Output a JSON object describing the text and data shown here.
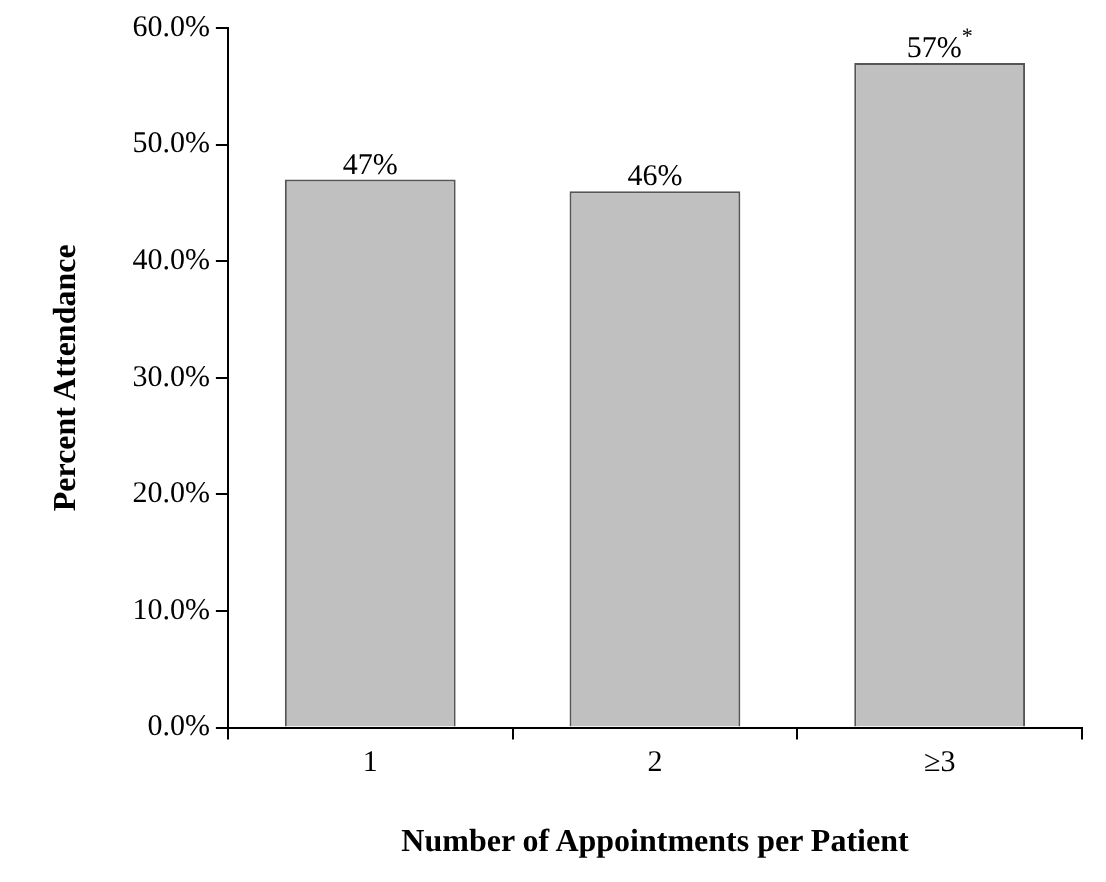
{
  "chart_data": {
    "type": "bar",
    "xlabel": "Number of Appointments per Patient",
    "ylabel": "Percent Attendance",
    "categories": [
      "1",
      "2",
      "≥3"
    ],
    "values": [
      47,
      46,
      57
    ],
    "value_labels": [
      "47%",
      "46%",
      "57%$^{*}$"
    ],
    "color": "#c0c0c0",
    "ylim": [
      0,
      60
    ],
    "yticks": [
      {
        "value": 0,
        "label": "0.0%"
      },
      {
        "value": 10,
        "label": "10.0%"
      },
      {
        "value": 20,
        "label": "20.0%"
      },
      {
        "value": 30,
        "label": "30.0%"
      },
      {
        "value": 40,
        "label": "40.0%"
      },
      {
        "value": 50,
        "label": "50.0%"
      },
      {
        "value": 60,
        "label": "60.0%"
      }
    ],
    "grid": false,
    "legend": false
  }
}
